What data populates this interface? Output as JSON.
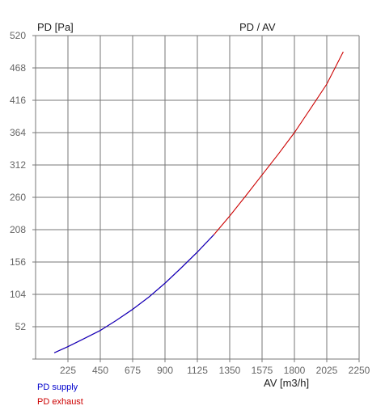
{
  "chart_data": {
    "type": "line",
    "title": "PD / AV",
    "ylabel": "PD [Pa]",
    "xlabel": "AV [m3/h]",
    "xlim": [
      0,
      2250
    ],
    "ylim": [
      0,
      520
    ],
    "xticks": [
      "225",
      "450",
      "675",
      "900",
      "1125",
      "1350",
      "1575",
      "1800",
      "2025",
      "2250"
    ],
    "yticks": [
      "52",
      "104",
      "156",
      "208",
      "260",
      "312",
      "364",
      "416",
      "468",
      "520"
    ],
    "grid": true,
    "series": [
      {
        "name": "PD supply",
        "color": "#0000cc",
        "x": [
          130,
          225,
          330,
          450,
          560,
          675,
          790,
          900,
          1010,
          1125,
          1240
        ],
        "y": [
          10,
          20,
          32,
          46,
          62,
          80,
          100,
          122,
          146,
          172,
          200
        ]
      },
      {
        "name": "PD exhaust",
        "color": "#cc0000",
        "x": [
          130,
          225,
          330,
          450,
          560,
          675,
          790,
          900,
          1010,
          1125,
          1240,
          1350,
          1460,
          1575,
          1690,
          1800,
          1910,
          2025,
          2140
        ],
        "y": [
          10,
          20,
          32,
          46,
          62,
          80,
          100,
          122,
          146,
          172,
          200,
          230,
          262,
          296,
          330,
          364,
          402,
          442,
          494
        ]
      }
    ]
  }
}
